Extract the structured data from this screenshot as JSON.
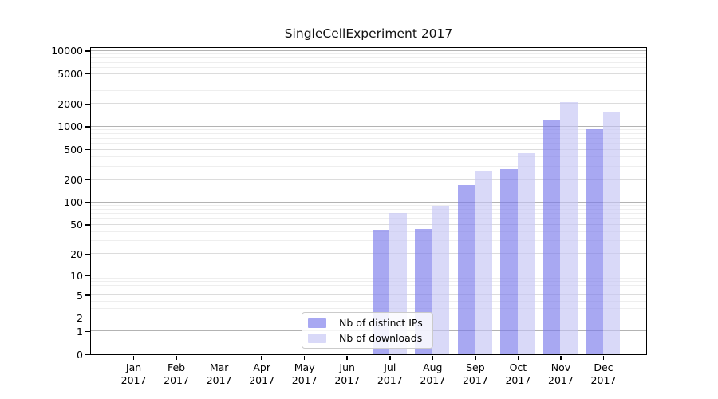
{
  "chart_data": {
    "type": "bar",
    "title": "SingleCellExperiment 2017",
    "categories": [
      {
        "month": "Jan",
        "year": "2017"
      },
      {
        "month": "Feb",
        "year": "2017"
      },
      {
        "month": "Mar",
        "year": "2017"
      },
      {
        "month": "Apr",
        "year": "2017"
      },
      {
        "month": "May",
        "year": "2017"
      },
      {
        "month": "Jun",
        "year": "2017"
      },
      {
        "month": "Jul",
        "year": "2017"
      },
      {
        "month": "Aug",
        "year": "2017"
      },
      {
        "month": "Sep",
        "year": "2017"
      },
      {
        "month": "Oct",
        "year": "2017"
      },
      {
        "month": "Nov",
        "year": "2017"
      },
      {
        "month": "Dec",
        "year": "2017"
      }
    ],
    "series": [
      {
        "name": "Nb of distinct IPs",
        "color": "rgba(122,122,235,0.65)",
        "values": [
          0,
          0,
          0,
          0,
          0,
          0,
          42,
          43,
          167,
          276,
          1200,
          910
        ]
      },
      {
        "name": "Nb of downloads",
        "color": "rgba(196,196,244,0.65)",
        "values": [
          0,
          0,
          0,
          0,
          0,
          0,
          72,
          89,
          261,
          446,
          2100,
          1550
        ]
      }
    ],
    "yscale": "log10(1+x)",
    "y_ticks": [
      0,
      1,
      2,
      5,
      10,
      20,
      50,
      100,
      200,
      500,
      1000,
      2000,
      5000,
      10000
    ],
    "ylim": [
      0,
      11000
    ],
    "xlabel": "",
    "ylabel": "",
    "grid": true,
    "legend_position": "lower center"
  },
  "colors": {
    "background": "#ffffff",
    "spine": "#000000",
    "grid_major": "#b3b3b3",
    "grid_labeled": "#dcdcdc",
    "grid_minor": "#eeeeee",
    "text": "#000000",
    "legend_border": "#cbcbcb"
  }
}
